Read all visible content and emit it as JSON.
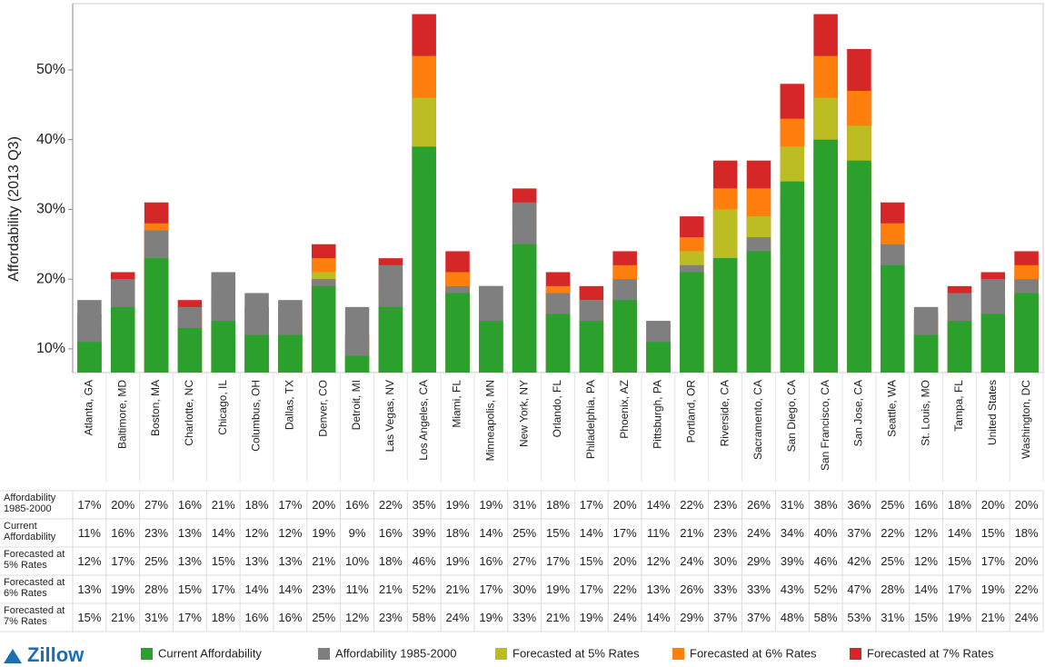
{
  "chart_data": {
    "type": "bar",
    "y_label": "Affordability (2013 Q3)",
    "logo": "Zillow",
    "categories": [
      "Atlanta, GA",
      "Baltimore, MD",
      "Boston, MA",
      "Charlotte, NC",
      "Chicago, IL",
      "Columbus, OH",
      "Dallas, TX",
      "Denver, CO",
      "Detroit, MI",
      "Las Vegas, NV",
      "Los Angeles, CA",
      "Miami, FL",
      "Minneapolis, MN",
      "New York, NY",
      "Orlando, FL",
      "Philadelphia, PA",
      "Phoenix, AZ",
      "Pittsburgh, PA",
      "Portland, OR",
      "Riverside, CA",
      "Sacramento, CA",
      "San Diego, CA",
      "San Francisco, CA",
      "San Jose, CA",
      "Seattle, WA",
      "St. Louis, MO",
      "Tampa, FL",
      "United States",
      "Washington, DC"
    ],
    "series": [
      {
        "name": "Current Affordability",
        "color": "#2ca02c",
        "values": [
          11,
          16,
          23,
          13,
          14,
          12,
          12,
          19,
          9,
          16,
          39,
          18,
          14,
          25,
          15,
          14,
          17,
          11,
          21,
          23,
          24,
          34,
          40,
          37,
          22,
          12,
          14,
          15,
          18
        ],
        "value_labels": [
          "11%",
          "16%",
          "23%",
          "13%",
          "14%",
          "12%",
          "12%",
          "19%",
          "9%",
          "16%",
          "39%",
          "18%",
          "14%",
          "25%",
          "15%",
          "14%",
          "17%",
          "11%",
          "21%",
          "23%",
          "24%",
          "34%",
          "40%",
          "37%",
          "22%",
          "12%",
          "14%",
          "15%",
          "18%"
        ]
      },
      {
        "name": "Affordability 1985-2000",
        "color": "#7f7f7f",
        "values": [
          17,
          20,
          27,
          16,
          21,
          18,
          17,
          20,
          16,
          22,
          35,
          19,
          19,
          31,
          18,
          17,
          20,
          14,
          22,
          23,
          26,
          31,
          38,
          36,
          25,
          16,
          18,
          20,
          20
        ],
        "value_labels": [
          "17%",
          "20%",
          "27%",
          "16%",
          "21%",
          "18%",
          "17%",
          "20%",
          "16%",
          "22%",
          "35%",
          "19%",
          "19%",
          "31%",
          "18%",
          "17%",
          "20%",
          "14%",
          "22%",
          "23%",
          "26%",
          "31%",
          "38%",
          "36%",
          "25%",
          "16%",
          "18%",
          "20%",
          "20%"
        ]
      },
      {
        "name": "Forecasted at 5% Rates",
        "color": "#bcbd22",
        "values": [
          12,
          17,
          25,
          13,
          15,
          13,
          13,
          21,
          10,
          18,
          46,
          19,
          16,
          27,
          17,
          15,
          20,
          12,
          24,
          30,
          29,
          39,
          46,
          42,
          25,
          12,
          15,
          17,
          20
        ],
        "value_labels": [
          "12%",
          "17%",
          "25%",
          "13%",
          "15%",
          "13%",
          "13%",
          "21%",
          "10%",
          "18%",
          "46%",
          "19%",
          "16%",
          "27%",
          "17%",
          "15%",
          "20%",
          "12%",
          "24%",
          "30%",
          "29%",
          "39%",
          "46%",
          "42%",
          "25%",
          "12%",
          "15%",
          "17%",
          "20%"
        ]
      },
      {
        "name": "Forecasted at 6% Rates",
        "color": "#ff7f0e",
        "values": [
          13,
          19,
          28,
          15,
          17,
          14,
          14,
          23,
          11,
          21,
          52,
          21,
          17,
          30,
          19,
          17,
          22,
          13,
          26,
          33,
          33,
          43,
          52,
          47,
          28,
          14,
          17,
          19,
          22
        ],
        "value_labels": [
          "13%",
          "19%",
          "28%",
          "15%",
          "17%",
          "14%",
          "14%",
          "23%",
          "11%",
          "21%",
          "52%",
          "21%",
          "17%",
          "30%",
          "19%",
          "17%",
          "22%",
          "13%",
          "26%",
          "33%",
          "33%",
          "43%",
          "52%",
          "47%",
          "28%",
          "14%",
          "17%",
          "19%",
          "22%"
        ]
      },
      {
        "name": "Forecasted at 7% Rates",
        "color": "#d62728",
        "values": [
          15,
          21,
          31,
          17,
          18,
          16,
          16,
          25,
          12,
          23,
          58,
          24,
          19,
          33,
          21,
          19,
          24,
          14,
          29,
          37,
          37,
          48,
          58,
          53,
          31,
          15,
          19,
          21,
          24
        ],
        "value_labels": [
          "15%",
          "21%",
          "31%",
          "17%",
          "18%",
          "16%",
          "16%",
          "25%",
          "12%",
          "23%",
          "58%",
          "24%",
          "19%",
          "33%",
          "21%",
          "19%",
          "24%",
          "14%",
          "29%",
          "37%",
          "37%",
          "48%",
          "58%",
          "53%",
          "31%",
          "15%",
          "19%",
          "21%",
          "24%"
        ]
      }
    ],
    "table_row_order": [
      1,
      0,
      2,
      3,
      4
    ],
    "ylim": [
      6.6,
      59.5
    ],
    "yticks": [
      {
        "value": 10,
        "label": "10%"
      },
      {
        "value": 20,
        "label": "20%"
      },
      {
        "value": 30,
        "label": "30%"
      },
      {
        "value": 40,
        "label": "40%"
      },
      {
        "value": 50,
        "label": "50%"
      }
    ],
    "grid": false
  }
}
